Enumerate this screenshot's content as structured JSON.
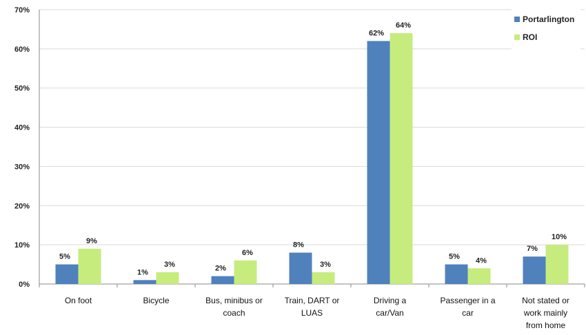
{
  "chart_data": {
    "type": "bar",
    "categories": [
      [
        "On foot"
      ],
      [
        "Bicycle"
      ],
      [
        "Bus, minibus or",
        "coach"
      ],
      [
        "Train, DART or",
        "LUAS"
      ],
      [
        "Driving a",
        "car/Van"
      ],
      [
        "Passenger in a",
        "car"
      ],
      [
        "Not stated or",
        "work mainly",
        "from  home"
      ]
    ],
    "series": [
      {
        "name": "Portarlington",
        "color": "#4f81bd",
        "values": [
          5,
          1,
          2,
          8,
          62,
          5,
          7
        ],
        "labels": [
          "5%",
          "1%",
          "2%",
          "8%",
          "62%",
          "5%",
          "7%"
        ]
      },
      {
        "name": "ROI",
        "color": "#c6ec7e",
        "values": [
          9,
          3,
          6,
          3,
          64,
          4,
          10
        ],
        "labels": [
          "9%",
          "3%",
          "6%",
          "3%",
          "64%",
          "4%",
          "10%"
        ]
      }
    ],
    "ylim": [
      0,
      70
    ],
    "yticks": [
      "0%",
      "10%",
      "20%",
      "30%",
      "40%",
      "50%",
      "60%",
      "70%"
    ],
    "grid": true,
    "legend_position": "top-right"
  }
}
